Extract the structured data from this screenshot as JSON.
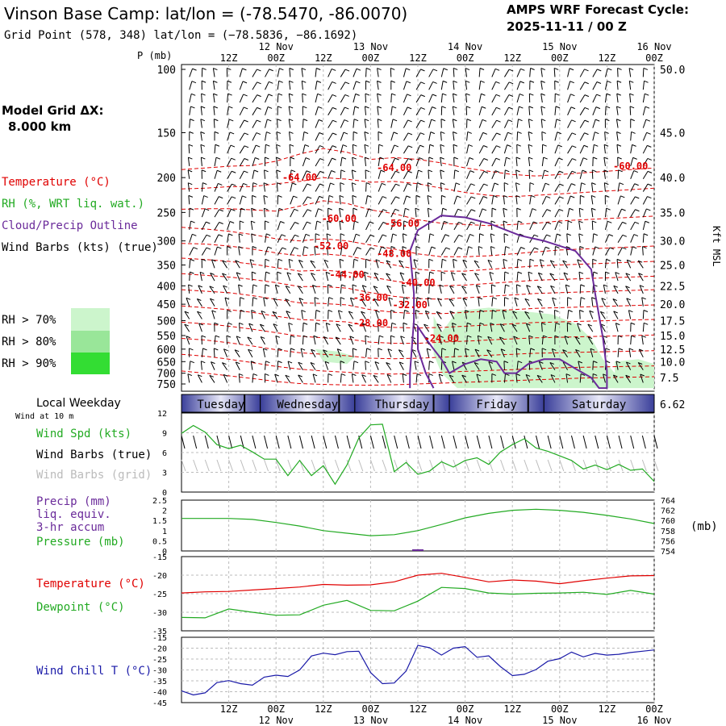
{
  "header": {
    "title": "Vinson Base Camp:  lat/lon = (-78.5470, -86.0070)",
    "subtitle": "Grid Point (578, 348) lat/lon = (−78.5836, −86.1692)",
    "cycle_label": "AMPS WRF Forecast Cycle:",
    "cycle_value": "2025-11-11 / 00  Z",
    "model_grid_label": "Model Grid ΔX:",
    "model_grid_value": "8.000 km"
  },
  "time_axis": {
    "top_dates": [
      "12 Nov",
      "13 Nov",
      "14 Nov",
      "15 Nov",
      "16 Nov"
    ],
    "hour_labels": [
      "12Z",
      "00Z",
      "12Z",
      "00Z",
      "12Z",
      "00Z",
      "12Z",
      "00Z",
      "12Z",
      "00Z"
    ],
    "bottom_dates": [
      "12 Nov",
      "13 Nov",
      "14 Nov",
      "15 Nov",
      "16 Nov"
    ],
    "weekday_label": "Local Weekday",
    "weekdays": [
      "Tuesday",
      "Wednesday",
      "Thursday",
      "Friday",
      "Saturday"
    ]
  },
  "chart_data": [
    {
      "type": "heatmap",
      "name": "Vertical cross-section",
      "ylabel_left": "P (mb)",
      "ylabel_right": "Kft MSL",
      "pressure_ticks": [
        100,
        150,
        200,
        250,
        300,
        350,
        400,
        450,
        500,
        550,
        600,
        650,
        700,
        750
      ],
      "height_ticks_kft": [
        "50.0",
        "45.0",
        "40.0",
        "35.0",
        "30.0",
        "25.0",
        "22.5",
        "20.0",
        "17.5",
        "15.0",
        "12.5",
        "10.0",
        "7.5",
        "6.62"
      ],
      "legend": {
        "temperature": "Temperature (°C)",
        "rh": "RH (%, WRT liq. wat.)",
        "cloud": "Cloud/Precip Outline",
        "wind": "Wind Barbs (kts) (true)",
        "rh_levels": [
          "RH > 70%",
          "RH > 80%",
          "RH > 90%"
        ]
      },
      "temperature_contour_labels": [
        "-64.00",
        "-64.00",
        "-60.00",
        "-60.00",
        "-56.00",
        "-52.00",
        "-48.00",
        "-44.00",
        "-40.00",
        "-36.00",
        "-32.00",
        "-28.00",
        "-24.00"
      ],
      "colors": {
        "temperature": "#e00000",
        "rh70": "#ccf5cc",
        "rh80": "#99e699",
        "rh90": "#33dd33",
        "cloud": "#6a2a9a",
        "weekday_band": "#3a3f9a"
      }
    },
    {
      "type": "line",
      "name": "Wind Speed",
      "labels": {
        "top": "Wind at 10 m",
        "speed": "Wind Spd (kts)",
        "true": "Wind Barbs (true)",
        "grid": "Wind Barbs (grid)"
      },
      "yticks": [
        0,
        3,
        6,
        9,
        12
      ],
      "ylim": [
        0,
        12
      ],
      "x_hours": [
        0,
        3,
        6,
        9,
        12,
        15,
        18,
        21,
        24,
        27,
        30,
        33,
        36,
        39,
        42,
        45,
        48,
        51,
        54,
        57,
        60,
        63,
        66,
        69,
        72,
        75,
        78,
        81,
        84,
        87,
        90,
        93,
        96,
        99,
        102,
        105,
        108,
        111,
        114,
        117,
        120
      ],
      "series": [
        {
          "name": "Wind Spd (kts)",
          "values": [
            8.9,
            10.1,
            9.1,
            7.2,
            6.6,
            7.1,
            6.1,
            5.0,
            5.0,
            2.5,
            4.8,
            2.5,
            4.0,
            1.2,
            4.1,
            8.2,
            10.2,
            10.3,
            3.1,
            4.5,
            2.7,
            3.2,
            4.6,
            3.8,
            4.8,
            5.2,
            4.2,
            6.1,
            7.2,
            8.1,
            6.7,
            6.2,
            5.5,
            4.8,
            3.5,
            4.1,
            3.4,
            4.2,
            3.3,
            3.5,
            1.6
          ]
        }
      ]
    },
    {
      "type": "line",
      "name": "Precip / Pressure",
      "labels": {
        "precip": "Precip (mm)",
        "liq": "liq. equiv.",
        "accum": "3-hr accum",
        "pressure": "Pressure (mb)",
        "unit": "(mb)"
      },
      "yticks_left": [
        "0",
        "0.5",
        "1",
        "1.5",
        "2",
        "2.5"
      ],
      "yticks_right": [
        754,
        756,
        758,
        760,
        762,
        764
      ],
      "ylim_right": [
        754,
        764
      ],
      "x_hours": [
        0,
        6,
        12,
        18,
        24,
        30,
        36,
        42,
        48,
        54,
        60,
        66,
        72,
        78,
        84,
        90,
        96,
        102,
        108,
        114,
        120
      ],
      "series": [
        {
          "name": "Pressure (mb)",
          "values": [
            760.4,
            760.4,
            760.4,
            760.2,
            759.6,
            758.9,
            758.0,
            757.5,
            757.0,
            757.2,
            758.0,
            759.2,
            760.5,
            761.4,
            762.0,
            762.2,
            762.0,
            761.6,
            761.0,
            760.3,
            759.4
          ]
        },
        {
          "name": "Precip (mm)",
          "values": [
            0,
            0,
            0,
            0,
            0,
            0,
            0,
            0,
            0,
            0,
            0.05,
            0,
            0,
            0,
            0,
            0,
            0,
            0,
            0,
            0,
            0
          ]
        }
      ]
    },
    {
      "type": "line",
      "name": "Temperature / Dewpoint",
      "labels": {
        "temp": "Temperature (°C)",
        "dew": "Dewpoint (°C)"
      },
      "yticks": [
        -35,
        -30,
        -25,
        -20,
        -15
      ],
      "ylim": [
        -35,
        -15
      ],
      "x_hours": [
        0,
        6,
        12,
        18,
        24,
        30,
        36,
        42,
        48,
        54,
        60,
        66,
        72,
        78,
        84,
        90,
        96,
        102,
        108,
        114,
        120
      ],
      "series": [
        {
          "name": "Temperature (°C)",
          "values": [
            -24.8,
            -24.5,
            -24.4,
            -24.0,
            -23.6,
            -23.2,
            -22.5,
            -22.7,
            -22.6,
            -21.8,
            -20.0,
            -19.5,
            -20.6,
            -21.8,
            -21.3,
            -21.6,
            -22.3,
            -21.5,
            -20.8,
            -20.2,
            -20.1
          ]
        },
        {
          "name": "Dewpoint (°C)",
          "values": [
            -31.4,
            -31.5,
            -29.1,
            -30.0,
            -30.8,
            -30.7,
            -28.1,
            -26.8,
            -29.5,
            -29.6,
            -27.0,
            -23.3,
            -23.6,
            -24.8,
            -25.1,
            -24.9,
            -24.8,
            -24.6,
            -25.2,
            -24.1,
            -25.1
          ]
        }
      ]
    },
    {
      "type": "line",
      "name": "Wind Chill",
      "labels": {
        "chill": "Wind Chill T (°C)"
      },
      "yticks": [
        -45,
        -40,
        -35,
        -30,
        -25,
        -20,
        -15
      ],
      "ylim": [
        -45,
        -15
      ],
      "x_hours": [
        0,
        3,
        6,
        9,
        12,
        15,
        18,
        21,
        24,
        27,
        30,
        33,
        36,
        39,
        42,
        45,
        48,
        51,
        54,
        57,
        60,
        63,
        66,
        69,
        72,
        75,
        78,
        81,
        84,
        87,
        90,
        93,
        96,
        99,
        102,
        105,
        108,
        111,
        114,
        117,
        120
      ],
      "series": [
        {
          "name": "Wind Chill T (°C)",
          "values": [
            -39.6,
            -41.5,
            -40.5,
            -35.8,
            -34.9,
            -36.3,
            -37.0,
            -33.3,
            -32.4,
            -33.0,
            -30.0,
            -23.6,
            -22.3,
            -23.0,
            -21.6,
            -21.4,
            -31.2,
            -36.3,
            -36.0,
            -30.5,
            -18.7,
            -19.8,
            -23.2,
            -20.0,
            -19.3,
            -24.2,
            -23.5,
            -28.5,
            -32.6,
            -32.0,
            -29.8,
            -26.0,
            -24.8,
            -21.8,
            -24.0,
            -22.4,
            -23.2,
            -22.8,
            -22.0,
            -21.4,
            -20.8
          ]
        }
      ]
    }
  ]
}
